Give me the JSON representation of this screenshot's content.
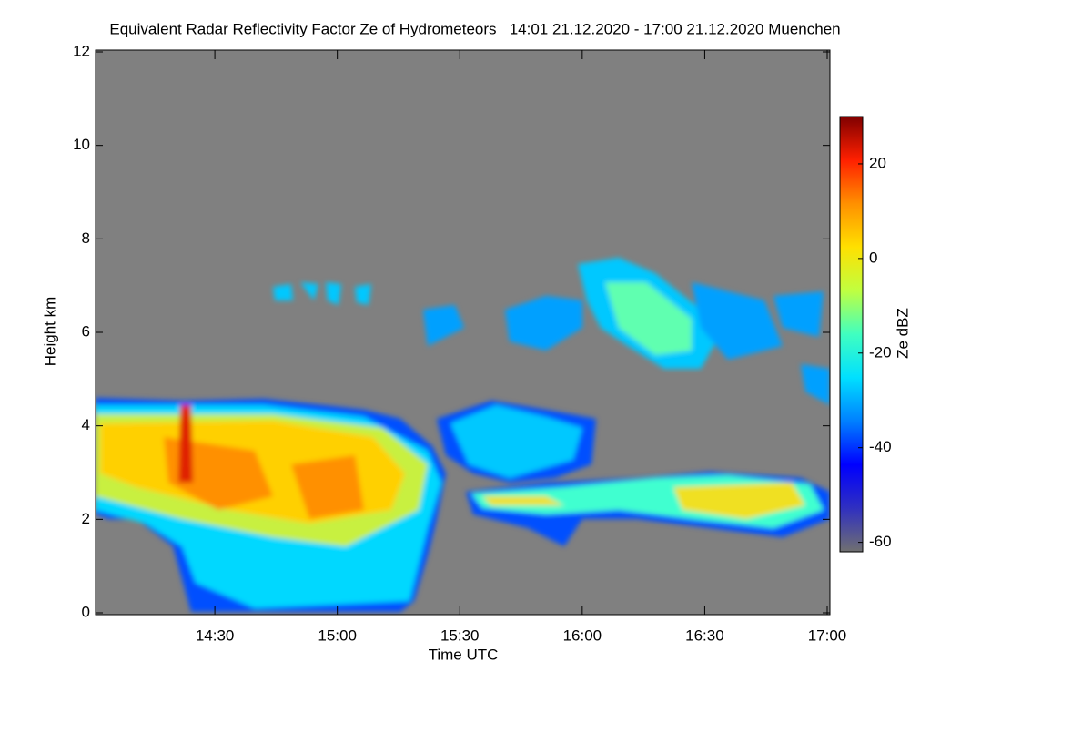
{
  "chart_data": {
    "type": "heatmap",
    "title": "Equivalent Radar Reflectivity Factor Ze of Hydrometeors   14:01 21.12.2020 - 17:00 21.12.2020 Muenchen",
    "x_label": "Time UTC",
    "y_label": "Height km",
    "colorbar_label": "Ze dBZ",
    "xlim": [
      "14:01",
      "17:00"
    ],
    "xticks": [
      "14:30",
      "15:00",
      "15:30",
      "16:00",
      "16:30",
      "17:00"
    ],
    "ylim": [
      0,
      12
    ],
    "yticks": [
      0,
      2,
      4,
      6,
      8,
      10,
      12
    ],
    "clim": [
      -62,
      30
    ],
    "cticks": [
      -60,
      -40,
      -20,
      0,
      20
    ],
    "colormap": [
      "#707070",
      "#3030c0",
      "#0000ff",
      "#0080ff",
      "#00e0ff",
      "#40ffc0",
      "#c0ff40",
      "#ffe000",
      "#ff9000",
      "#ff2000",
      "#800000"
    ],
    "background": "#808080"
  }
}
